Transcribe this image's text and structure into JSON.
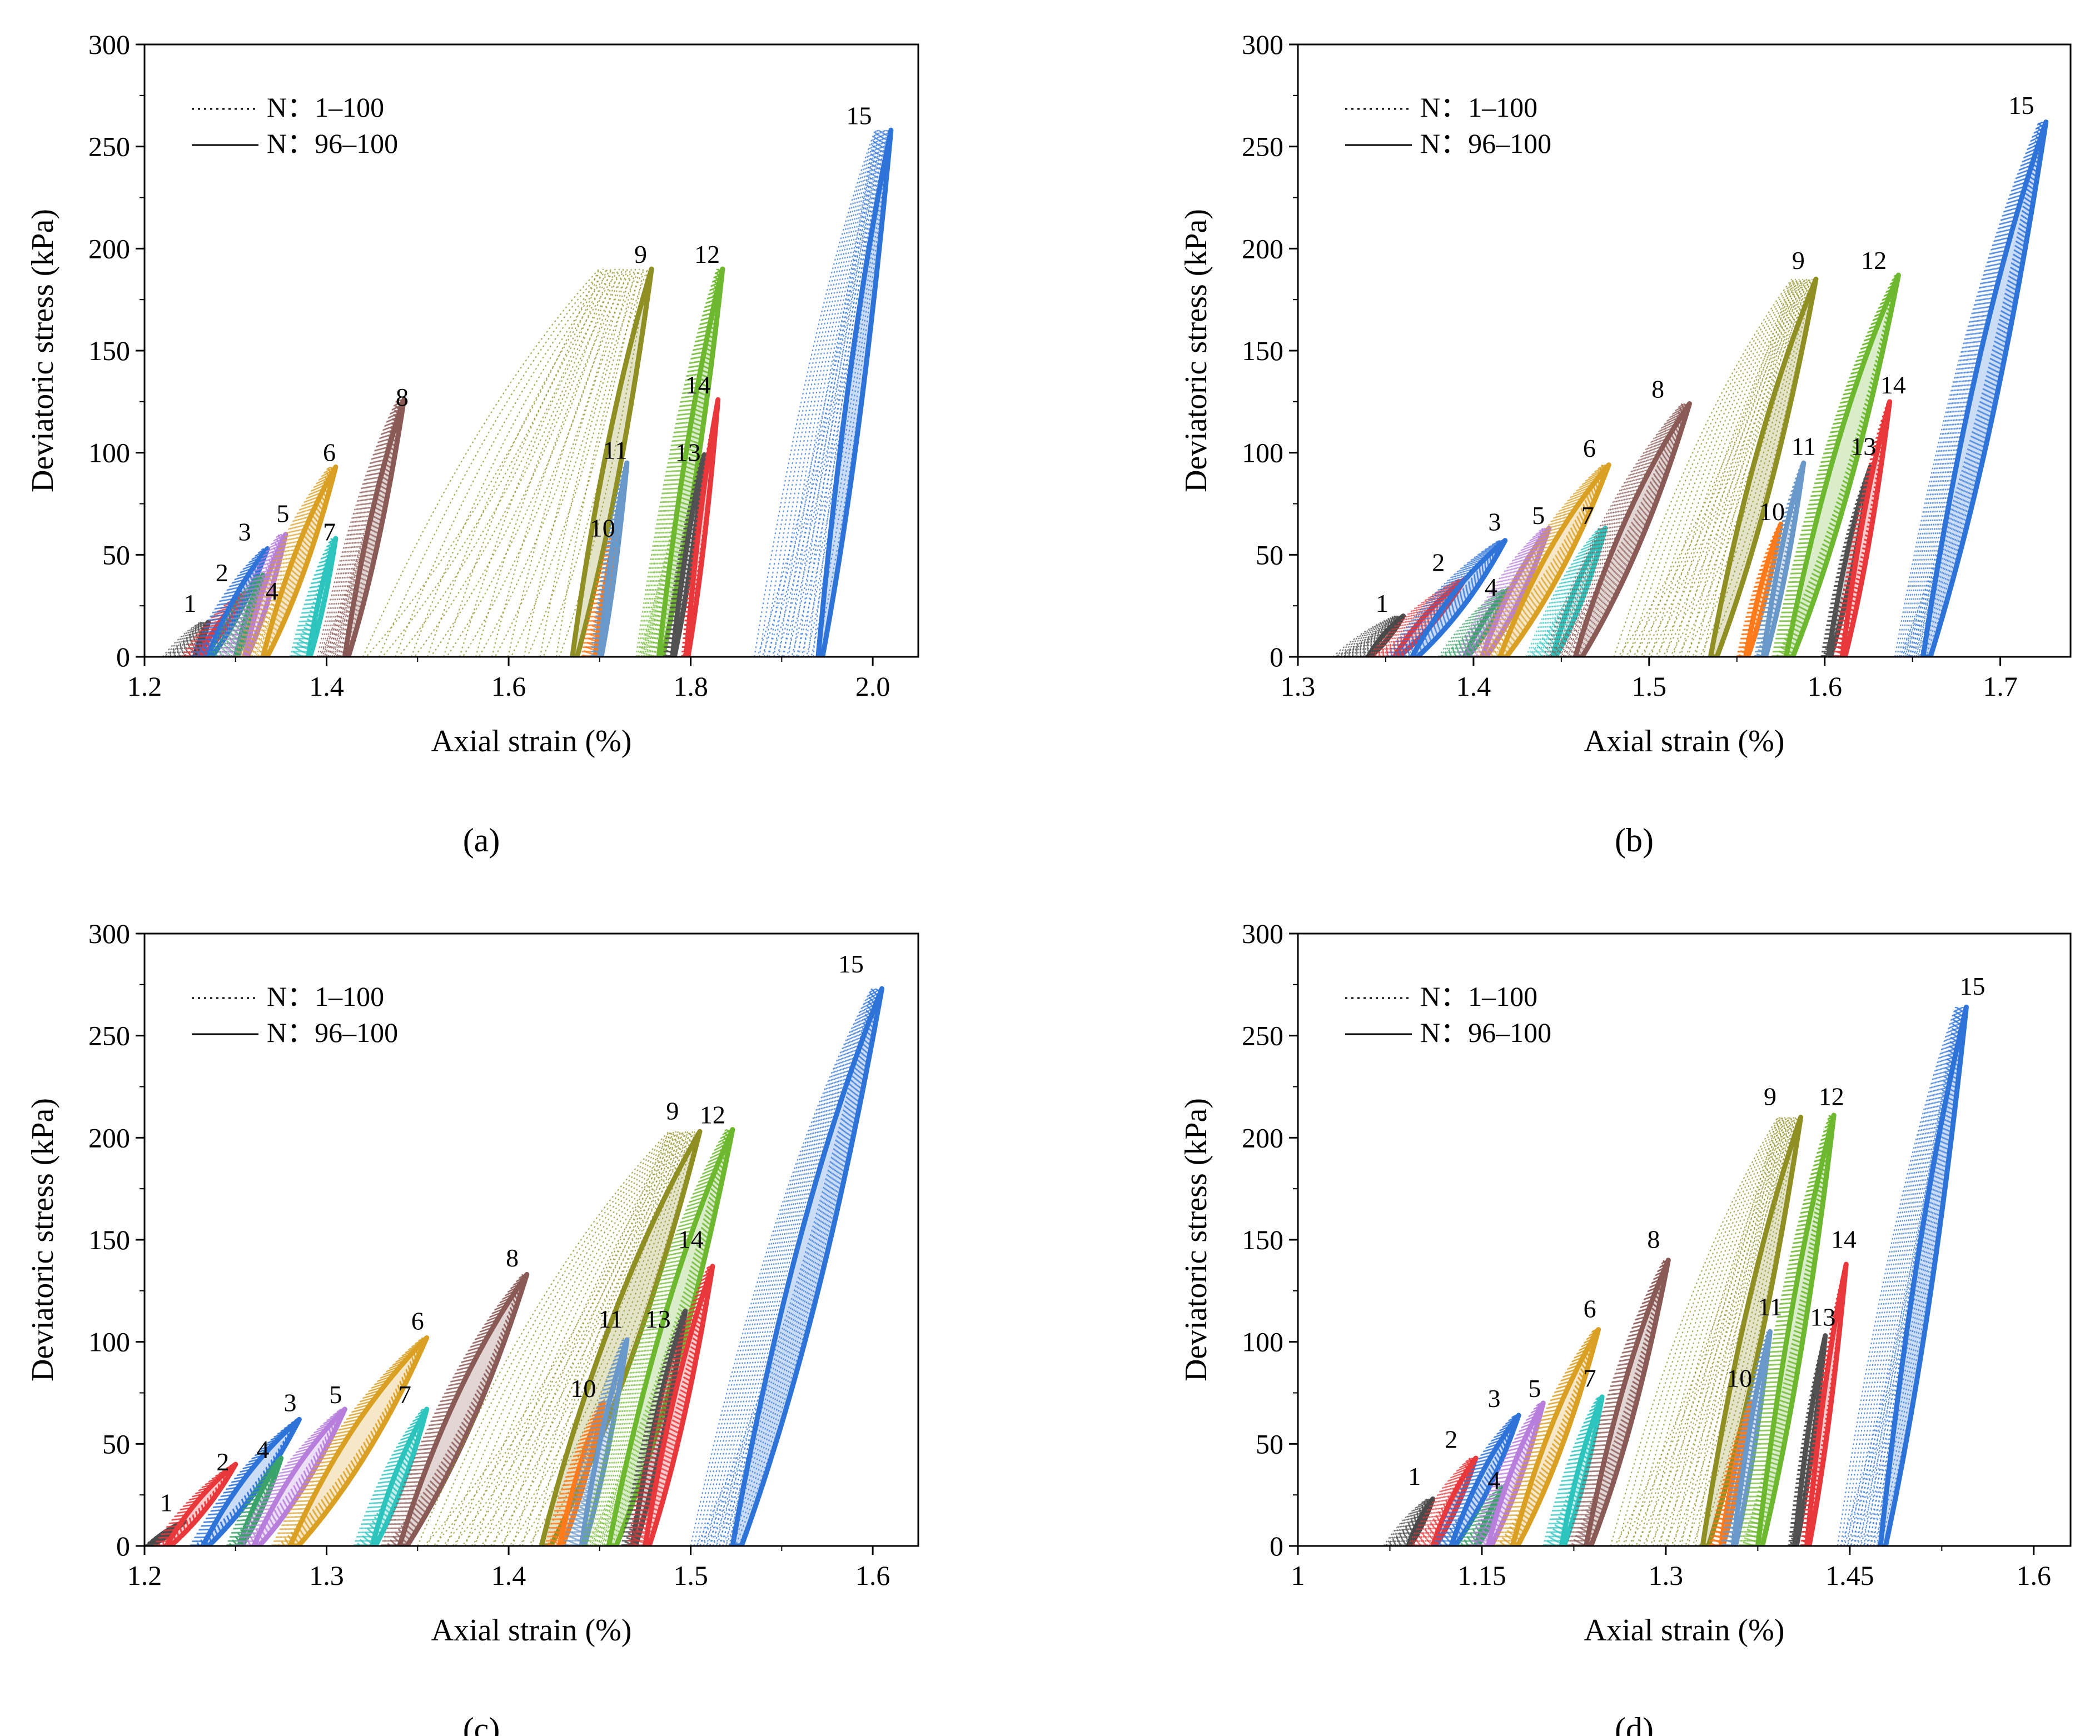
{
  "figure": {
    "legend": {
      "dotted": "N：1–100",
      "solid": "N：96–100"
    },
    "colors": [
      "#4a4a4a",
      "#e8383b",
      "#2e73d8",
      "#3aa36a",
      "#b77fdb",
      "#d9a024",
      "#2cc4bd",
      "#8a5a56",
      "#8f8f24",
      "#ff7a1a",
      "#6a98c8",
      "#6db82e",
      "#515151",
      "#e8383b",
      "#2e73d8"
    ]
  },
  "chart_data": [
    {
      "type": "line",
      "panel_label": "(a)",
      "xlabel": "Axial strain (%)",
      "ylabel": "Deviatoric stress (kPa)",
      "xlim": [
        1.2,
        2.05
      ],
      "ylim": [
        0,
        300
      ],
      "xticks": [
        "1.2",
        "1.4",
        "1.6",
        "1.8",
        "2.0"
      ],
      "xtick_values": [
        1.2,
        1.4,
        1.6,
        1.8,
        2.0
      ],
      "yticks": [
        "0",
        "50",
        "100",
        "150",
        "200",
        "250",
        "300"
      ],
      "ytick_values": [
        0,
        50,
        100,
        150,
        200,
        250,
        300
      ],
      "series": [
        {
          "name": "1",
          "first_x0": 1.22,
          "x0": 1.255,
          "x1": 1.27,
          "y_max": 17,
          "label_x": 1.25,
          "label_y": 22
        },
        {
          "name": "2",
          "first_x0": 1.24,
          "x0": 1.26,
          "x1": 1.31,
          "y_max": 31,
          "label_x": 1.285,
          "label_y": 37
        },
        {
          "name": "3",
          "first_x0": 1.25,
          "x0": 1.27,
          "x1": 1.335,
          "y_max": 53,
          "label_x": 1.31,
          "label_y": 57
        },
        {
          "name": "4",
          "first_x0": 1.27,
          "x0": 1.3,
          "x1": 1.33,
          "y_max": 40,
          "label_x": 1.34,
          "label_y": 28
        },
        {
          "name": "5",
          "first_x0": 1.28,
          "x0": 1.31,
          "x1": 1.355,
          "y_max": 60,
          "label_x": 1.352,
          "label_y": 66
        },
        {
          "name": "6",
          "first_x0": 1.3,
          "x0": 1.33,
          "x1": 1.41,
          "y_max": 93,
          "label_x": 1.403,
          "label_y": 96
        },
        {
          "name": "7",
          "first_x0": 1.36,
          "x0": 1.38,
          "x1": 1.41,
          "y_max": 58,
          "label_x": 1.403,
          "label_y": 57
        },
        {
          "name": "8",
          "first_x0": 1.39,
          "x0": 1.42,
          "x1": 1.485,
          "y_max": 126,
          "label_x": 1.483,
          "label_y": 123
        },
        {
          "name": "9",
          "first_x0": 1.44,
          "x0": 1.67,
          "x1": 1.757,
          "y_max": 190,
          "label_x": 1.745,
          "label_y": 193
        },
        {
          "name": "10",
          "first_x0": 1.68,
          "x0": 1.695,
          "x1": 1.72,
          "y_max": 65,
          "label_x": 1.703,
          "label_y": 59
        },
        {
          "name": "11",
          "first_x0": 1.69,
          "x0": 1.7,
          "x1": 1.73,
          "y_max": 95,
          "label_x": 1.717,
          "label_y": 97
        },
        {
          "name": "12",
          "first_x0": 1.74,
          "x0": 1.765,
          "x1": 1.835,
          "y_max": 190,
          "label_x": 1.818,
          "label_y": 193
        },
        {
          "name": "13",
          "first_x0": 1.77,
          "x0": 1.78,
          "x1": 1.815,
          "y_max": 99,
          "label_x": 1.797,
          "label_y": 96
        },
        {
          "name": "14",
          "first_x0": 1.79,
          "x0": 1.795,
          "x1": 1.83,
          "y_max": 126,
          "label_x": 1.808,
          "label_y": 129
        },
        {
          "name": "15",
          "first_x0": 1.87,
          "x0": 1.94,
          "x1": 2.02,
          "y_max": 258,
          "label_x": 1.985,
          "label_y": 261
        }
      ]
    },
    {
      "type": "line",
      "panel_label": "(b)",
      "xlabel": "Axial strain (%)",
      "ylabel": "Deviatoric stress (kPa)",
      "xlim": [
        1.3,
        1.74
      ],
      "ylim": [
        0,
        300
      ],
      "xticks": [
        "1.3",
        "1.4",
        "1.5",
        "1.6",
        "1.7"
      ],
      "xtick_values": [
        1.3,
        1.4,
        1.5,
        1.6,
        1.7
      ],
      "yticks": [
        "0",
        "50",
        "100",
        "150",
        "200",
        "250",
        "300"
      ],
      "ytick_values": [
        0,
        50,
        100,
        150,
        200,
        250,
        300
      ],
      "series": [
        {
          "name": "1",
          "first_x0": 1.32,
          "x0": 1.34,
          "x1": 1.36,
          "y_max": 20,
          "label_x": 1.348,
          "label_y": 22
        },
        {
          "name": "2",
          "first_x0": 1.34,
          "x0": 1.355,
          "x1": 1.395,
          "y_max": 38,
          "label_x": 1.38,
          "label_y": 42
        },
        {
          "name": "3",
          "first_x0": 1.35,
          "x0": 1.365,
          "x1": 1.418,
          "y_max": 57,
          "label_x": 1.412,
          "label_y": 62
        },
        {
          "name": "4",
          "first_x0": 1.38,
          "x0": 1.395,
          "x1": 1.42,
          "y_max": 33,
          "label_x": 1.41,
          "label_y": 30
        },
        {
          "name": "5",
          "first_x0": 1.39,
          "x0": 1.405,
          "x1": 1.443,
          "y_max": 63,
          "label_x": 1.437,
          "label_y": 65
        },
        {
          "name": "6",
          "first_x0": 1.4,
          "x0": 1.415,
          "x1": 1.477,
          "y_max": 94,
          "label_x": 1.466,
          "label_y": 98
        },
        {
          "name": "7",
          "first_x0": 1.43,
          "x0": 1.445,
          "x1": 1.475,
          "y_max": 63,
          "label_x": 1.465,
          "label_y": 65
        },
        {
          "name": "8",
          "first_x0": 1.44,
          "x0": 1.458,
          "x1": 1.523,
          "y_max": 124,
          "label_x": 1.505,
          "label_y": 127
        },
        {
          "name": "9",
          "first_x0": 1.48,
          "x0": 1.535,
          "x1": 1.595,
          "y_max": 185,
          "label_x": 1.585,
          "label_y": 190
        },
        {
          "name": "10",
          "first_x0": 1.55,
          "x0": 1.555,
          "x1": 1.575,
          "y_max": 65,
          "label_x": 1.57,
          "label_y": 67
        },
        {
          "name": "11",
          "first_x0": 1.56,
          "x0": 1.565,
          "x1": 1.588,
          "y_max": 95,
          "label_x": 1.588,
          "label_y": 99
        },
        {
          "name": "12",
          "first_x0": 1.57,
          "x0": 1.578,
          "x1": 1.642,
          "y_max": 187,
          "label_x": 1.628,
          "label_y": 190
        },
        {
          "name": "13",
          "first_x0": 1.598,
          "x0": 1.602,
          "x1": 1.626,
          "y_max": 93,
          "label_x": 1.622,
          "label_y": 99
        },
        {
          "name": "14",
          "first_x0": 1.605,
          "x0": 1.61,
          "x1": 1.637,
          "y_max": 125,
          "label_x": 1.639,
          "label_y": 129
        },
        {
          "name": "15",
          "first_x0": 1.64,
          "x0": 1.656,
          "x1": 1.726,
          "y_max": 262,
          "label_x": 1.712,
          "label_y": 266
        }
      ]
    },
    {
      "type": "line",
      "panel_label": "(c)",
      "xlabel": "Axial strain (%)",
      "ylabel": "Deviatoric stress (kPa)",
      "xlim": [
        1.2,
        1.625
      ],
      "ylim": [
        0,
        300
      ],
      "xticks": [
        "1.2",
        "1.3",
        "1.4",
        "1.5",
        "1.6"
      ],
      "xtick_values": [
        1.2,
        1.3,
        1.4,
        1.5,
        1.6
      ],
      "yticks": [
        "0",
        "50",
        "100",
        "150",
        "200",
        "250",
        "300"
      ],
      "ytick_values": [
        0,
        50,
        100,
        150,
        200,
        250,
        300
      ],
      "series": [
        {
          "name": "1",
          "first_x0": 1.2,
          "x0": 1.202,
          "x1": 1.222,
          "y_max": 12,
          "label_x": 1.212,
          "label_y": 17
        },
        {
          "name": "2",
          "first_x0": 1.205,
          "x0": 1.212,
          "x1": 1.25,
          "y_max": 40,
          "label_x": 1.243,
          "label_y": 37
        },
        {
          "name": "3",
          "first_x0": 1.225,
          "x0": 1.232,
          "x1": 1.285,
          "y_max": 62,
          "label_x": 1.28,
          "label_y": 66
        },
        {
          "name": "4",
          "first_x0": 1.245,
          "x0": 1.252,
          "x1": 1.275,
          "y_max": 43,
          "label_x": 1.265,
          "label_y": 43
        },
        {
          "name": "5",
          "first_x0": 1.25,
          "x0": 1.26,
          "x1": 1.31,
          "y_max": 67,
          "label_x": 1.305,
          "label_y": 70
        },
        {
          "name": "6",
          "first_x0": 1.27,
          "x0": 1.28,
          "x1": 1.355,
          "y_max": 102,
          "label_x": 1.35,
          "label_y": 106
        },
        {
          "name": "7",
          "first_x0": 1.315,
          "x0": 1.325,
          "x1": 1.355,
          "y_max": 67,
          "label_x": 1.343,
          "label_y": 70
        },
        {
          "name": "8",
          "first_x0": 1.33,
          "x0": 1.34,
          "x1": 1.41,
          "y_max": 133,
          "label_x": 1.402,
          "label_y": 137
        },
        {
          "name": "9",
          "first_x0": 1.35,
          "x0": 1.418,
          "x1": 1.505,
          "y_max": 203,
          "label_x": 1.49,
          "label_y": 209
        },
        {
          "name": "10",
          "first_x0": 1.42,
          "x0": 1.428,
          "x1": 1.452,
          "y_max": 70,
          "label_x": 1.441,
          "label_y": 73
        },
        {
          "name": "11",
          "first_x0": 1.43,
          "x0": 1.44,
          "x1": 1.465,
          "y_max": 101,
          "label_x": 1.456,
          "label_y": 107
        },
        {
          "name": "12",
          "first_x0": 1.44,
          "x0": 1.455,
          "x1": 1.523,
          "y_max": 204,
          "label_x": 1.512,
          "label_y": 207
        },
        {
          "name": "13",
          "first_x0": 1.462,
          "x0": 1.468,
          "x1": 1.497,
          "y_max": 115,
          "label_x": 1.482,
          "label_y": 107
        },
        {
          "name": "14",
          "first_x0": 1.465,
          "x0": 1.475,
          "x1": 1.512,
          "y_max": 137,
          "label_x": 1.5,
          "label_y": 146
        },
        {
          "name": "15",
          "first_x0": 1.5,
          "x0": 1.523,
          "x1": 1.605,
          "y_max": 273,
          "label_x": 1.588,
          "label_y": 281
        }
      ]
    },
    {
      "type": "line",
      "panel_label": "(d)",
      "xlabel": "Axial strain (%)",
      "ylabel": "Deviatoric stress (kPa)",
      "xlim": [
        1.0,
        1.63
      ],
      "ylim": [
        0,
        300
      ],
      "xticks": [
        "1",
        "1.15",
        "1.3",
        "1.45",
        "1.6"
      ],
      "xtick_values": [
        1.0,
        1.15,
        1.3,
        1.45,
        1.6
      ],
      "yticks": [
        "0",
        "50",
        "100",
        "150",
        "200",
        "250",
        "300"
      ],
      "ytick_values": [
        0,
        50,
        100,
        150,
        200,
        250,
        300
      ],
      "series": [
        {
          "name": "1",
          "first_x0": 1.07,
          "x0": 1.09,
          "x1": 1.11,
          "y_max": 23,
          "label_x": 1.095,
          "label_y": 30
        },
        {
          "name": "2",
          "first_x0": 1.09,
          "x0": 1.11,
          "x1": 1.145,
          "y_max": 43,
          "label_x": 1.125,
          "label_y": 48
        },
        {
          "name": "3",
          "first_x0": 1.11,
          "x0": 1.125,
          "x1": 1.18,
          "y_max": 64,
          "label_x": 1.16,
          "label_y": 68
        },
        {
          "name": "4",
          "first_x0": 1.13,
          "x0": 1.145,
          "x1": 1.17,
          "y_max": 30,
          "label_x": 1.16,
          "label_y": 28
        },
        {
          "name": "5",
          "first_x0": 1.14,
          "x0": 1.155,
          "x1": 1.2,
          "y_max": 70,
          "label_x": 1.193,
          "label_y": 73
        },
        {
          "name": "6",
          "first_x0": 1.16,
          "x0": 1.175,
          "x1": 1.245,
          "y_max": 106,
          "label_x": 1.238,
          "label_y": 112
        },
        {
          "name": "7",
          "first_x0": 1.2,
          "x0": 1.215,
          "x1": 1.248,
          "y_max": 73,
          "label_x": 1.238,
          "label_y": 78
        },
        {
          "name": "8",
          "first_x0": 1.22,
          "x0": 1.235,
          "x1": 1.302,
          "y_max": 140,
          "label_x": 1.29,
          "label_y": 146
        },
        {
          "name": "9",
          "first_x0": 1.255,
          "x0": 1.33,
          "x1": 1.41,
          "y_max": 210,
          "label_x": 1.385,
          "label_y": 216
        },
        {
          "name": "10",
          "first_x0": 1.335,
          "x0": 1.345,
          "x1": 1.37,
          "y_max": 70,
          "label_x": 1.36,
          "label_y": 78
        },
        {
          "name": "11",
          "first_x0": 1.345,
          "x0": 1.355,
          "x1": 1.385,
          "y_max": 105,
          "label_x": 1.385,
          "label_y": 113
        },
        {
          "name": "12",
          "first_x0": 1.36,
          "x0": 1.375,
          "x1": 1.437,
          "y_max": 211,
          "label_x": 1.435,
          "label_y": 216
        },
        {
          "name": "13",
          "first_x0": 1.4,
          "x0": 1.405,
          "x1": 1.43,
          "y_max": 103,
          "label_x": 1.428,
          "label_y": 108
        },
        {
          "name": "14",
          "first_x0": 1.41,
          "x0": 1.415,
          "x1": 1.447,
          "y_max": 138,
          "label_x": 1.445,
          "label_y": 146
        },
        {
          "name": "15",
          "first_x0": 1.44,
          "x0": 1.475,
          "x1": 1.545,
          "y_max": 264,
          "label_x": 1.55,
          "label_y": 270
        }
      ]
    }
  ]
}
